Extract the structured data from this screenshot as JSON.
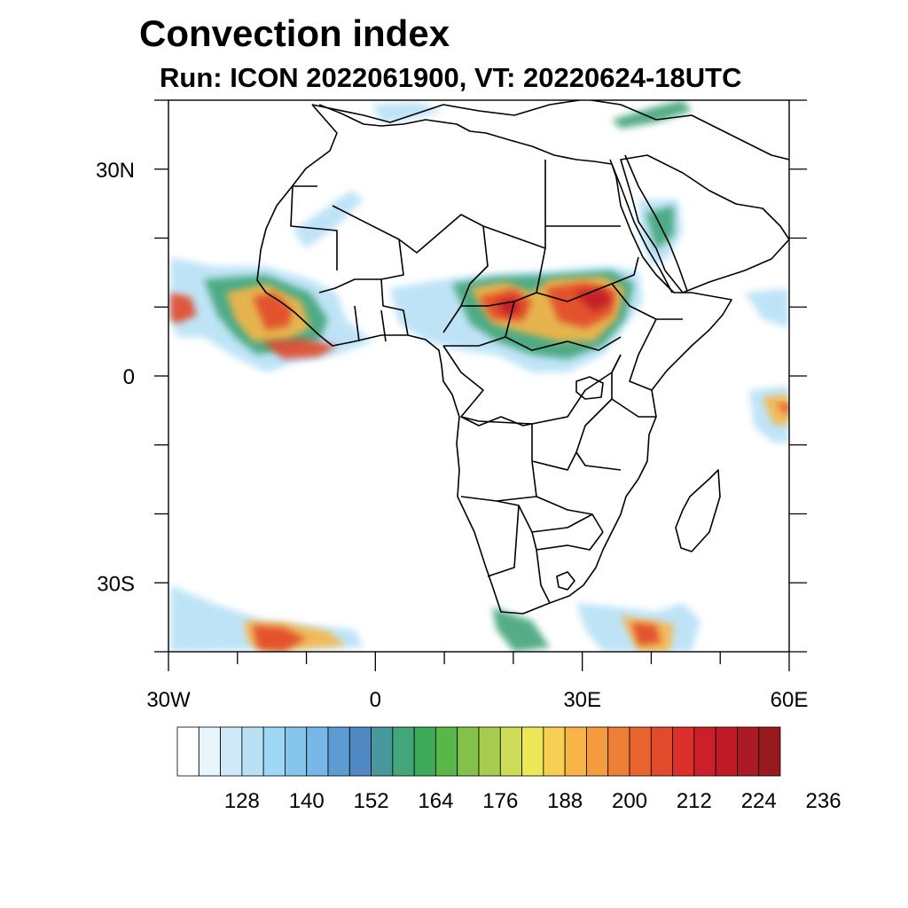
{
  "title": "Convection index",
  "subtitle": "Run: ICON 2022061900,  VT: 20220624-18UTC",
  "map": {
    "lon_range": [
      -30,
      60
    ],
    "lat_range": [
      -40,
      40
    ],
    "lat_ticks": [
      {
        "value": 30,
        "label": "30N"
      },
      {
        "value": 0,
        "label": "0"
      },
      {
        "value": -30,
        "label": "30S"
      }
    ],
    "lon_ticks": [
      {
        "value": -30,
        "label": "30W"
      },
      {
        "value": 0,
        "label": "0"
      },
      {
        "value": 30,
        "label": "30E"
      },
      {
        "value": 60,
        "label": "60E"
      }
    ],
    "minor_lat_step": 10,
    "minor_lon_step": 10
  },
  "colorbar": {
    "colors": [
      "#ffffff",
      "#e9f4fb",
      "#d0e9f8",
      "#b8e1f6",
      "#9fd8f4",
      "#86c5ec",
      "#77b6e6",
      "#5d9bd3",
      "#4f88c2",
      "#46989c",
      "#43a57a",
      "#3daa5a",
      "#59b749",
      "#84c14a",
      "#a7cd4e",
      "#cfdc57",
      "#ece859",
      "#f7cf52",
      "#f7b547",
      "#f49c3e",
      "#ee7f37",
      "#ea6430",
      "#e24a2b",
      "#da3029",
      "#cb2029",
      "#be1b27",
      "#ab1a24",
      "#961a1e"
    ],
    "labels": [
      "128",
      "140",
      "152",
      "164",
      "176",
      "188",
      "200",
      "212",
      "224",
      "236"
    ]
  },
  "colors": {
    "border": "#000000",
    "cold": "#b8e1f6",
    "moderate": "#43a57a",
    "warm": "#f7b547",
    "hot": "#e24a2b",
    "extreme": "#be1b27"
  }
}
